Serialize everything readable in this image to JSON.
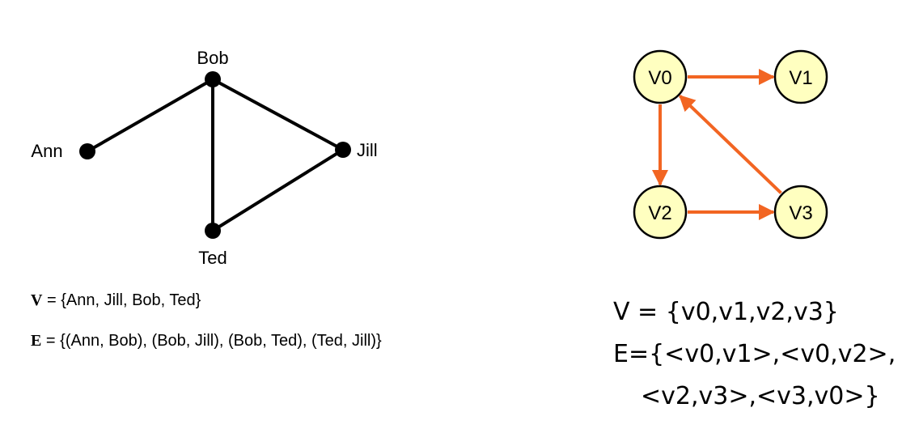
{
  "undirected_graph": {
    "nodes": [
      {
        "id": "ann",
        "label": "Ann"
      },
      {
        "id": "bob",
        "label": "Bob"
      },
      {
        "id": "jill",
        "label": "Jill"
      },
      {
        "id": "ted",
        "label": "Ted"
      }
    ],
    "edges": [
      {
        "from": "ann",
        "to": "bob"
      },
      {
        "from": "bob",
        "to": "jill"
      },
      {
        "from": "bob",
        "to": "ted"
      },
      {
        "from": "ted",
        "to": "jill"
      }
    ],
    "vertex_symbol": "V",
    "vertex_set": " = {Ann, Jill, Bob, Ted}",
    "edge_symbol": "E",
    "edge_set": " = {(Ann, Bob), (Bob, Jill), (Bob, Ted), (Ted, Jill)}"
  },
  "directed_graph": {
    "node_fill": "#ffffc0",
    "edge_color": "#f26522",
    "nodes": [
      {
        "id": "v0",
        "label": "V0"
      },
      {
        "id": "v1",
        "label": "V1"
      },
      {
        "id": "v2",
        "label": "V2"
      },
      {
        "id": "v3",
        "label": "V3"
      }
    ],
    "edges": [
      {
        "from": "v0",
        "to": "v1"
      },
      {
        "from": "v0",
        "to": "v2"
      },
      {
        "from": "v2",
        "to": "v3"
      },
      {
        "from": "v3",
        "to": "v0"
      }
    ],
    "vertex_line": "V = {v0,v1,v2,v3}",
    "edge_line_1": "E={<v0,v1>,<v0,v2>,",
    "edge_line_2": "<v2,v3>,<v3,v0>}"
  }
}
